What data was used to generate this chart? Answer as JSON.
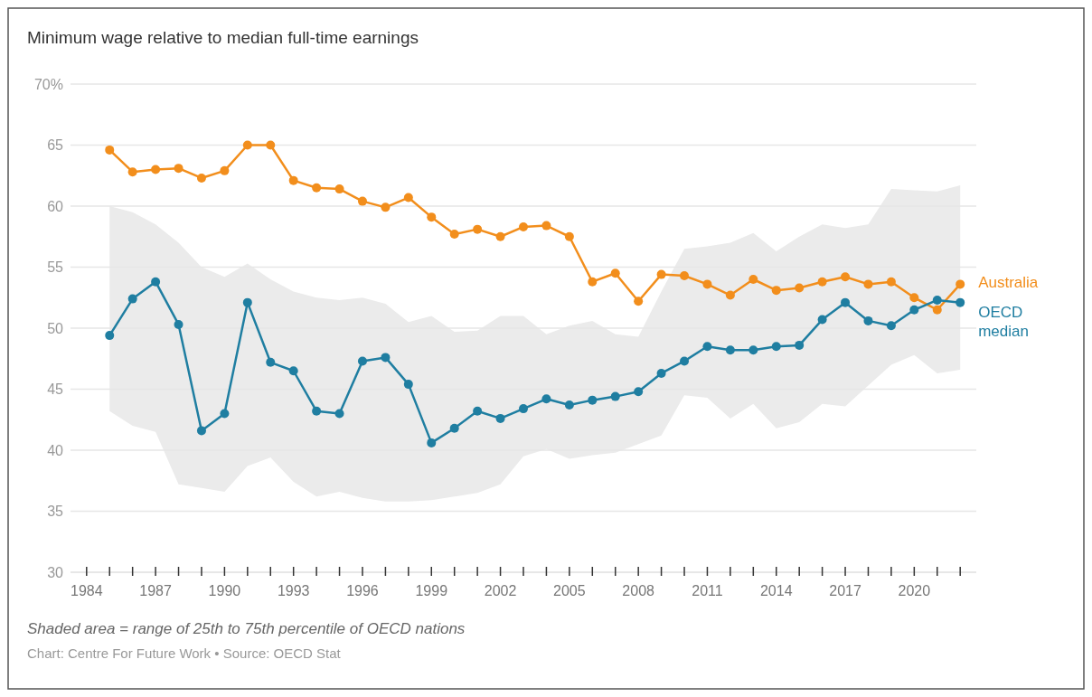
{
  "chart_data": {
    "type": "line",
    "title": "Minimum wage relative to median full-time earnings",
    "x": [
      1985,
      1986,
      1987,
      1988,
      1989,
      1990,
      1991,
      1992,
      1993,
      1994,
      1995,
      1996,
      1997,
      1998,
      1999,
      2000,
      2001,
      2002,
      2003,
      2004,
      2005,
      2006,
      2007,
      2008,
      2009,
      2010,
      2011,
      2012,
      2013,
      2014,
      2015,
      2016,
      2017,
      2018,
      2019,
      2020,
      2021,
      2022
    ],
    "series": [
      {
        "name": "Australia",
        "color": "#f28e1c",
        "values": [
          64.6,
          62.8,
          63.0,
          63.1,
          62.3,
          62.9,
          65.0,
          65.0,
          62.1,
          61.5,
          61.4,
          60.4,
          59.9,
          60.7,
          59.1,
          57.7,
          58.1,
          57.5,
          58.3,
          58.4,
          57.5,
          53.8,
          54.5,
          52.2,
          54.4,
          54.3,
          53.6,
          52.7,
          54.0,
          53.1,
          53.3,
          53.8,
          54.2,
          53.6,
          53.8,
          52.5,
          51.5,
          53.6
        ]
      },
      {
        "name": "OECD median",
        "color": "#1f7ea1",
        "values": [
          49.4,
          52.4,
          53.8,
          50.3,
          41.6,
          43.0,
          52.1,
          47.2,
          46.5,
          43.2,
          43.0,
          47.3,
          47.6,
          45.4,
          40.6,
          41.8,
          43.2,
          42.6,
          43.4,
          44.2,
          43.7,
          44.1,
          44.4,
          44.8,
          46.3,
          47.3,
          48.5,
          48.2,
          48.2,
          48.5,
          48.6,
          50.7,
          52.1,
          50.6,
          50.2,
          51.5,
          52.3,
          52.1
        ],
        "lower": [
          43.2,
          42,
          41.5,
          37.2,
          36.9,
          36.6,
          38.7,
          39.4,
          37.4,
          36.2,
          36.6,
          36.1,
          35.8,
          35.8,
          35.9,
          36.2,
          36.5,
          37.2,
          39.5,
          40.1,
          39.3,
          39.6,
          39.8,
          40.5,
          41.2,
          44.5,
          44.3,
          42.6,
          43.8,
          41.8,
          42.3,
          43.8,
          43.6,
          45.3,
          47,
          47.8,
          46.3,
          46.6
        ],
        "upper": [
          60,
          59.5,
          58.5,
          57,
          55,
          54.2,
          55.3,
          54,
          53,
          52.5,
          52.3,
          52.5,
          52,
          50.5,
          51,
          49.7,
          49.8,
          51,
          51,
          49.5,
          50.2,
          50.6,
          49.5,
          49.3,
          53,
          56.5,
          56.7,
          57,
          57.8,
          56.3,
          57.5,
          58.5,
          58.2,
          58.5,
          61.4,
          61.3,
          61.2,
          61.7
        ]
      }
    ],
    "xlim": [
      1983.3,
      2022.7
    ],
    "xticks": [
      1984,
      {
        "value": 1985,
        "label": null
      },
      {
        "value": 1986,
        "label": null
      },
      1987,
      {
        "value": 1988,
        "label": null
      },
      {
        "value": 1989,
        "label": null
      },
      1990,
      {
        "value": 1991,
        "label": null
      },
      {
        "value": 1992,
        "label": null
      },
      1993,
      {
        "value": 1994,
        "label": null
      },
      {
        "value": 1995,
        "label": null
      },
      1996,
      {
        "value": 1997,
        "label": null
      },
      {
        "value": 1998,
        "label": null
      },
      1999,
      {
        "value": 2000,
        "label": null
      },
      {
        "value": 2001,
        "label": null
      },
      2002,
      {
        "value": 2003,
        "label": null
      },
      {
        "value": 2004,
        "label": null
      },
      2005,
      {
        "value": 2006,
        "label": null
      },
      {
        "value": 2007,
        "label": null
      },
      2008,
      {
        "value": 2009,
        "label": null
      },
      {
        "value": 2010,
        "label": null
      },
      2011,
      {
        "value": 2012,
        "label": null
      },
      {
        "value": 2013,
        "label": null
      },
      2014,
      {
        "value": 2015,
        "label": null
      },
      {
        "value": 2016,
        "label": null
      },
      2017,
      {
        "value": 2018,
        "label": null
      },
      {
        "value": 2019,
        "label": null
      },
      2020,
      {
        "value": 2021,
        "label": null
      },
      {
        "value": 2022,
        "label": null
      }
    ],
    "ylim": [
      30,
      70
    ],
    "yticks": [
      30,
      35,
      40,
      45,
      50,
      55,
      60,
      65,
      {
        "value": 70,
        "label": "70%"
      }
    ],
    "grid": "y",
    "marker": "circle",
    "line_style": "solid",
    "annotations": [
      "Shaded area = range of 25th to 75th percentile of OECD nations",
      "Chart: Centre For Future Work • Source: OECD Stat"
    ]
  }
}
